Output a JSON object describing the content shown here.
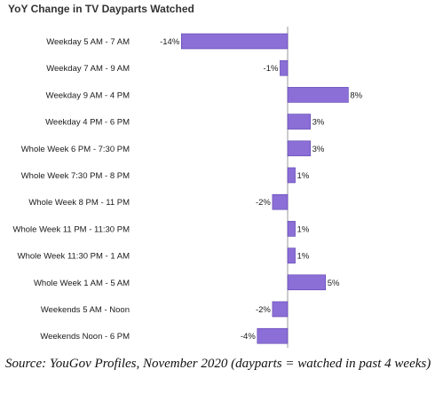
{
  "chart_data": {
    "type": "bar",
    "orientation": "horizontal",
    "title": "YoY Change in TV Dayparts Watched",
    "xlabel": "",
    "ylabel": "",
    "value_suffix": "%",
    "bar_color": "#8b6fd6",
    "bar_stroke": "#5b3fb0",
    "axis_color": "#999999",
    "categories": [
      "Weekday 5 AM - 7 AM",
      "Weekday 7 AM - 9 AM",
      "Weekday 9 AM - 4 PM",
      "Weekday 4 PM - 6 PM",
      "Whole Week 6 PM - 7:30 PM",
      "Whole Week 7:30 PM - 8 PM",
      "Whole Week 8 PM - 11 PM",
      "Whole Week 11 PM - 11:30 PM",
      "Whole Week 11:30 PM - 1 AM",
      "Whole Week 1 AM - 5 AM",
      "Weekends 5 AM - Noon",
      "Weekends Noon - 6 PM"
    ],
    "values": [
      -14,
      -1,
      8,
      3,
      3,
      1,
      -2,
      1,
      1,
      5,
      -2,
      -4
    ],
    "xlim": [
      -14,
      8
    ]
  },
  "caption": "Source: YouGov Profiles, November 2020 (dayparts = watched in past 4 weeks)"
}
